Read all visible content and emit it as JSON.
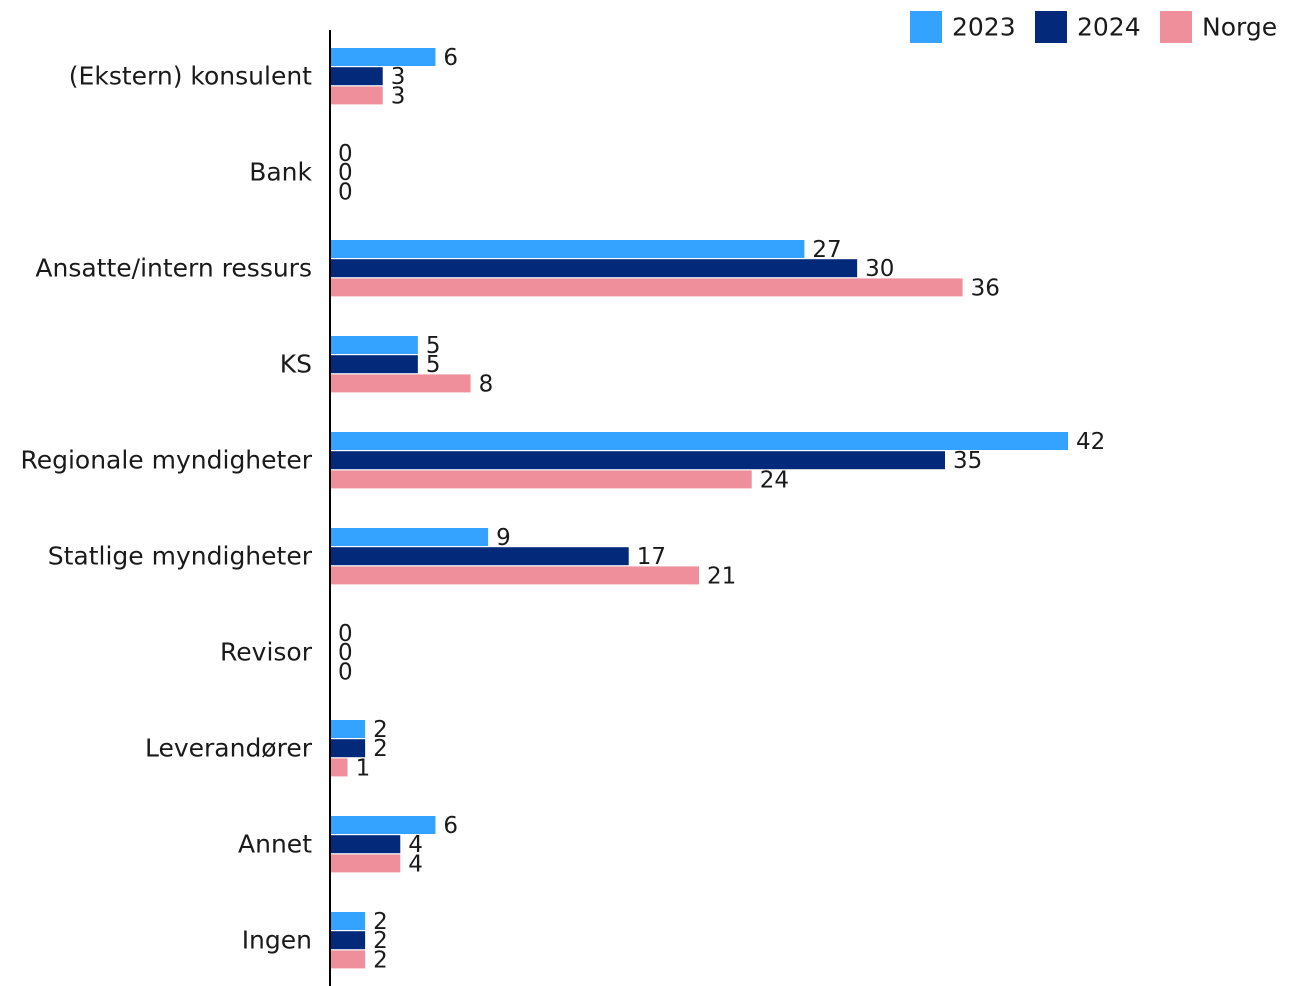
{
  "chart_data": {
    "type": "bar",
    "orientation": "horizontal",
    "categories": [
      "(Ekstern) konsulent",
      "Bank",
      "Ansatte/intern ressurs",
      "KS",
      "Regionale myndigheter",
      "Statlige myndigheter",
      "Revisor",
      "Leverandører",
      "Annet",
      "Ingen"
    ],
    "series": [
      {
        "name": "2023",
        "color": "#33a3ff",
        "values": [
          6,
          0,
          27,
          5,
          42,
          9,
          0,
          2,
          6,
          2
        ]
      },
      {
        "name": "2024",
        "color": "#032a7a",
        "values": [
          3,
          0,
          30,
          5,
          35,
          17,
          0,
          2,
          4,
          2
        ]
      },
      {
        "name": "Norge",
        "color": "#f08f9c",
        "values": [
          3,
          0,
          36,
          8,
          24,
          21,
          0,
          1,
          4,
          2
        ]
      }
    ],
    "title": "",
    "xlabel": "",
    "ylabel": "",
    "xlim": [
      0,
      42
    ],
    "grid": false,
    "legend_position": "top-right",
    "data_labels": true
  }
}
